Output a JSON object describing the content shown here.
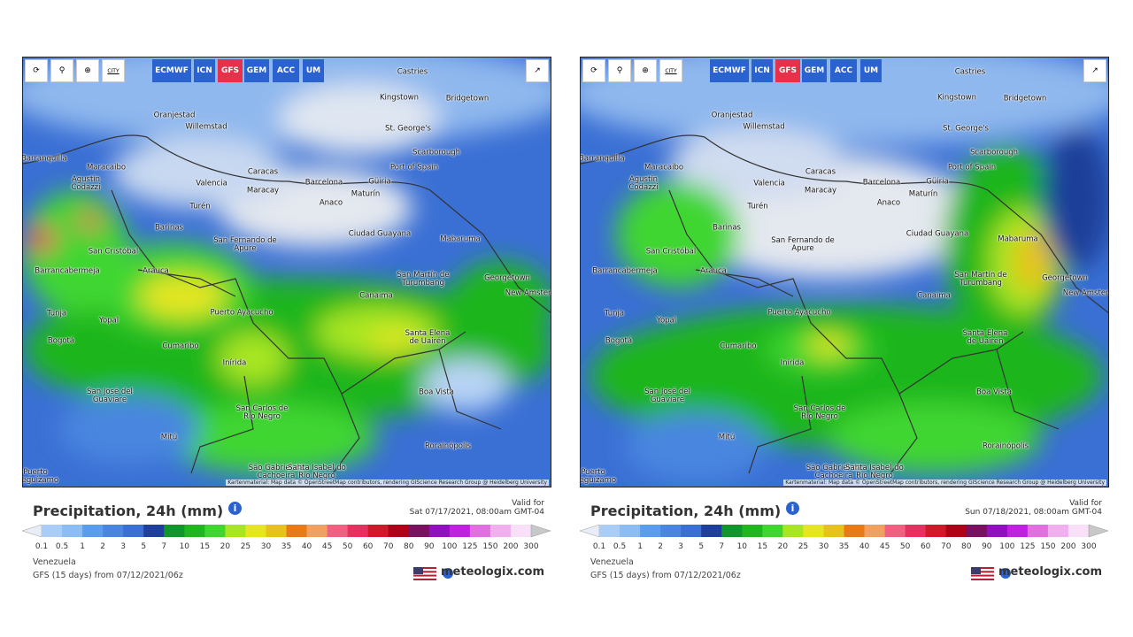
{
  "panels": [
    {
      "toolbar": {
        "city": "CITY",
        "models": [
          "ECMWF",
          "ICN",
          "GFS",
          "GEM",
          "ACC",
          "UM"
        ],
        "active_model": "GFS"
      },
      "cities": [
        "Castries",
        "Kingstown",
        "Bridgetown",
        "Oranjestad",
        "Willemstad",
        "St. George's",
        "Scarborough",
        "Barranquilla",
        "Maracaibo",
        "Port of Spain",
        "Agustín Codazzi",
        "Caracas",
        "Valencia",
        "Barcelona",
        "Güiria",
        "Maracay",
        "Maturín",
        "Turén",
        "Anaco",
        "Barinas",
        "Ciudad Guayana",
        "Mabaruma",
        "San Fernando de Apure",
        "San Cristóbal",
        "Arauca",
        "Barrancabermeja",
        "San Martín de Turumbang",
        "Georgetown",
        "New Amsterdam",
        "Canaima",
        "Tunja",
        "Yopal",
        "Puerto Ayacucho",
        "Bogotá",
        "Cumaribo",
        "Santa Elena de Uairén",
        "Inírida",
        "Boa Vista",
        "San José del Guaviare",
        "San Carlos de Río Negro",
        "Mitú",
        "Rorainópolis",
        "São Gabriel da Cachoeira",
        "Santa Isabel do Rio Negro",
        "Puerto Leguízamo"
      ],
      "attribution": "Kartenmaterial: Map data © OpenStreetMap contributors, rendering GIScience Research Group @ Heidelberg University",
      "title": "Precipitation, 24h (mm)",
      "valid_label": "Valid for",
      "valid_time": "Sat 07/17/2021, 08:00am GMT-04",
      "region": "Venezuela",
      "model_run": "GFS (15 days) from 07/12/2021/06z",
      "brand": "meteologix.com"
    },
    {
      "toolbar": {
        "city": "CITY",
        "models": [
          "ECMWF",
          "ICN",
          "GFS",
          "GEM",
          "ACC",
          "UM"
        ],
        "active_model": "GFS"
      },
      "cities": [
        "Castries",
        "Kingstown",
        "Bridgetown",
        "Oranjestad",
        "Willemstad",
        "St. George's",
        "Scarborough",
        "Barranquilla",
        "Maracaibo",
        "Port of Spain",
        "Agustín Codazzi",
        "Caracas",
        "Valencia",
        "Barcelona",
        "Güiria",
        "Maracay",
        "Maturín",
        "Turén",
        "Anaco",
        "Barinas",
        "Ciudad Guayana",
        "Mabaruma",
        "San Fernando de Apure",
        "San Cristóbal",
        "Arauca",
        "Barrancabermeja",
        "San Martín de Turumbang",
        "Georgetown",
        "New Amsterdam",
        "Canaima",
        "Tunja",
        "Yopal",
        "Puerto Ayacucho",
        "Bogotá",
        "Cumaribo",
        "Santa Elena de Uairén",
        "Inírida",
        "Boa Vista",
        "San José del Guaviare",
        "San Carlos de Río Negro",
        "Mitú",
        "Rorainópolis",
        "São Gabriel da Cachoeira",
        "Santa Isabel do Rio Negro",
        "Puerto Leguízamo"
      ],
      "attribution": "Kartenmaterial: Map data © OpenStreetMap contributors, rendering GIScience Research Group @ Heidelberg University",
      "title": "Precipitation, 24h (mm)",
      "valid_label": "Valid for",
      "valid_time": "Sun 07/18/2021, 08:00am GMT-04",
      "region": "Venezuela",
      "model_run": "GFS (15 days) from 07/12/2021/06z",
      "brand": "meteologix.com"
    }
  ],
  "legend": {
    "ticks": [
      "0.1",
      "0.5",
      "1",
      "2",
      "3",
      "5",
      "7",
      "10",
      "15",
      "20",
      "25",
      "30",
      "35",
      "40",
      "45",
      "50",
      "60",
      "70",
      "80",
      "90",
      "100",
      "125",
      "150",
      "200",
      "300"
    ],
    "colors": [
      "#e8eef8",
      "#a9cdf6",
      "#8bbdf4",
      "#5b9ded",
      "#4a86e0",
      "#3a6fd4",
      "#1e3f9a",
      "#10962c",
      "#1fb61f",
      "#3fd630",
      "#a8e622",
      "#e6e620",
      "#e8c21c",
      "#e87a18",
      "#f0a060",
      "#f06080",
      "#e83060",
      "#d0182a",
      "#b00018",
      "#7a1060",
      "#9010c0",
      "#c020e0",
      "#e070e0",
      "#f0b0f0",
      "#f8e0f8",
      "#c8c8c8"
    ]
  }
}
